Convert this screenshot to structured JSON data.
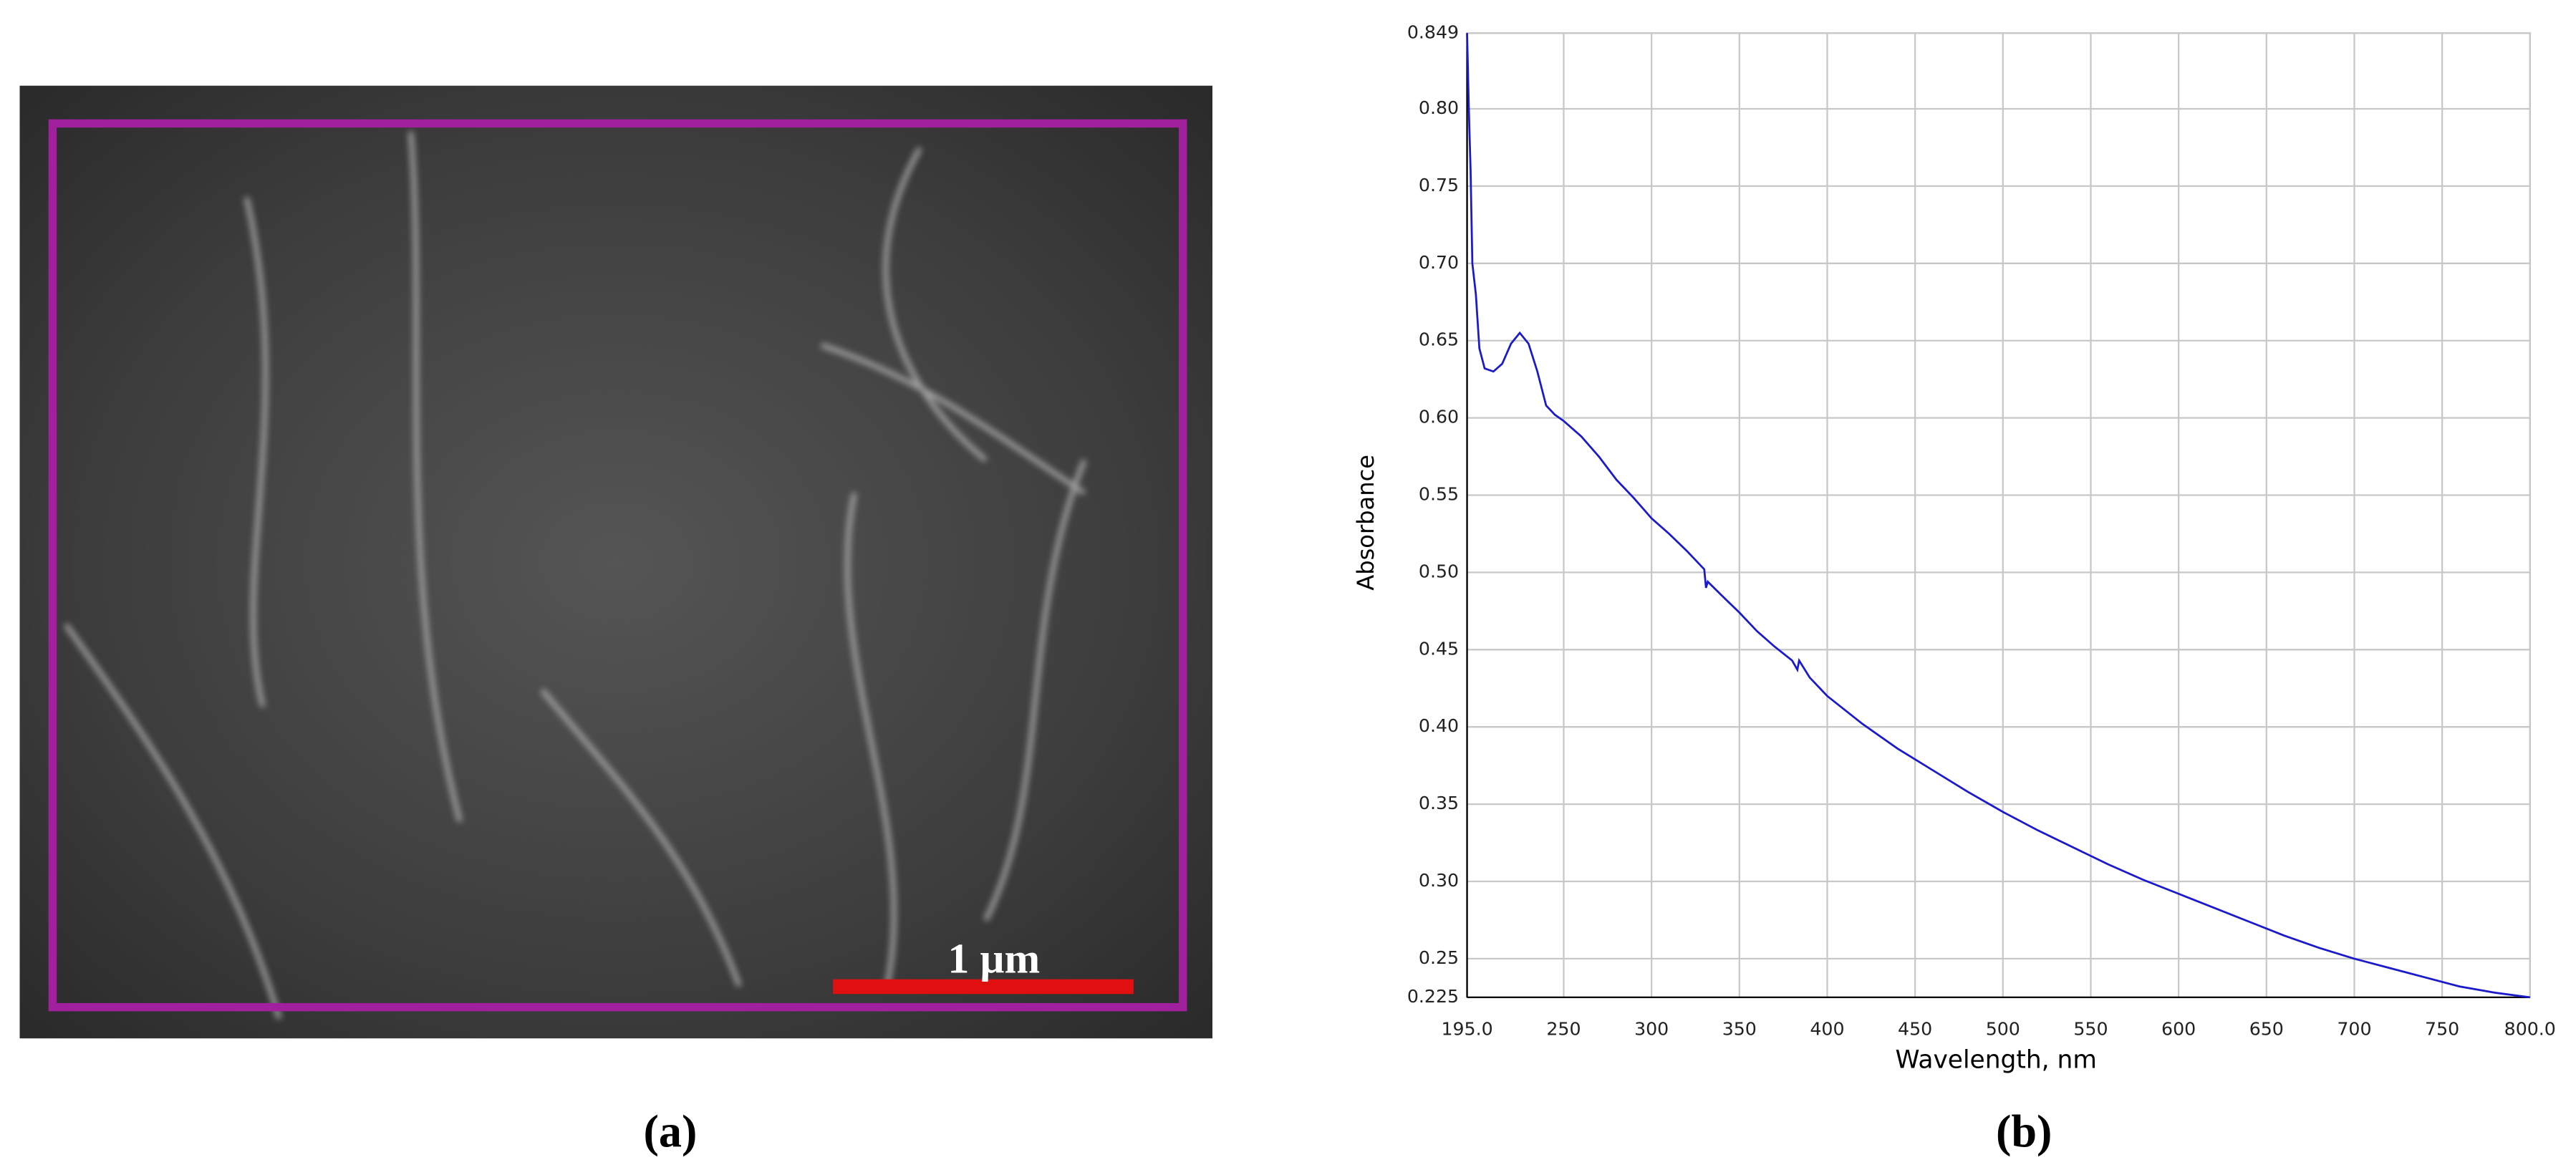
{
  "panel_a": {
    "label": "(a)",
    "scale_bar": "1 µm"
  },
  "panel_b": {
    "label": "(b)"
  },
  "chart_data": {
    "type": "line",
    "y_label": "Absorbance",
    "x_label": "Wavelength, nm",
    "xlim": [
      195.0,
      800.0
    ],
    "ylim": [
      0.225,
      0.849
    ],
    "xticks": [
      {
        "value": 195.0,
        "label": "195.0"
      },
      250,
      300,
      350,
      400,
      450,
      500,
      550,
      600,
      650,
      700,
      750,
      {
        "value": 800.0,
        "label": "800.0"
      }
    ],
    "yticks": [
      {
        "value": 0.225,
        "label": "0.225"
      },
      0.25,
      {
        "value": 0.3,
        "label": "0.30"
      },
      0.35,
      {
        "value": 0.4,
        "label": "0.40"
      },
      0.45,
      {
        "value": 0.5,
        "label": "0.50"
      },
      0.55,
      {
        "value": 0.6,
        "label": "0.60"
      },
      0.65,
      {
        "value": 0.7,
        "label": "0.70"
      },
      0.75,
      {
        "value": 0.8,
        "label": "0.80"
      },
      {
        "value": 0.849,
        "label": "0.849"
      }
    ],
    "grid": true,
    "series": [
      {
        "color": "#1a1acc",
        "x": [
          195,
          196,
          197,
          198,
          200,
          202,
          205,
          210,
          215,
          220,
          225,
          230,
          235,
          240,
          245,
          250,
          260,
          270,
          280,
          290,
          300,
          310,
          320,
          330,
          331,
          332,
          340,
          350,
          360,
          370,
          380,
          383,
          384,
          390,
          400,
          420,
          440,
          460,
          480,
          500,
          520,
          540,
          560,
          580,
          600,
          620,
          640,
          660,
          680,
          700,
          720,
          740,
          760,
          780,
          800
        ],
        "values": [
          0.849,
          0.8,
          0.76,
          0.7,
          0.68,
          0.645,
          0.632,
          0.63,
          0.635,
          0.648,
          0.655,
          0.648,
          0.63,
          0.608,
          0.602,
          0.598,
          0.588,
          0.575,
          0.56,
          0.548,
          0.535,
          0.525,
          0.514,
          0.502,
          0.49,
          0.494,
          0.485,
          0.474,
          0.462,
          0.452,
          0.443,
          0.437,
          0.443,
          0.432,
          0.42,
          0.402,
          0.386,
          0.372,
          0.358,
          0.345,
          0.333,
          0.322,
          0.311,
          0.301,
          0.292,
          0.283,
          0.274,
          0.265,
          0.257,
          0.25,
          0.244,
          0.238,
          0.232,
          0.228,
          0.225
        ]
      }
    ]
  }
}
